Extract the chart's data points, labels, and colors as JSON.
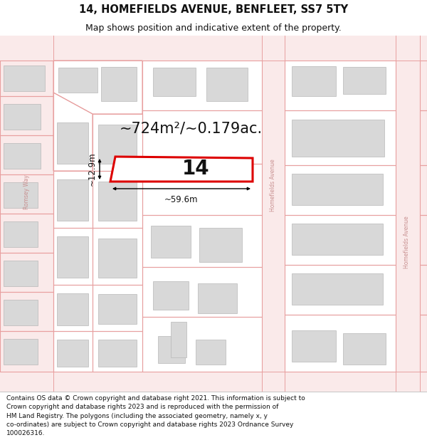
{
  "title": "14, HOMEFIELDS AVENUE, BENFLEET, SS7 5TY",
  "subtitle": "Map shows position and indicative extent of the property.",
  "footer_lines": [
    "Contains OS data © Crown copyright and database right 2021. This information is subject to",
    "Crown copyright and database rights 2023 and is reproduced with the permission of",
    "HM Land Registry. The polygons (including the associated geometry, namely x, y",
    "co-ordinates) are subject to Crown copyright and database rights 2023 Ordnance Survey",
    "100026316."
  ],
  "area_label": "~724m²/~0.179ac.",
  "width_label": "~59.6m",
  "height_label": "~12.9m",
  "plot_number": "14",
  "map_bg": "#ffffff",
  "map_faint_bg": "#fef8f8",
  "building_fill": "#d8d8d8",
  "building_edge": "#b8b8b8",
  "plot_line_color": "#e8a0a0",
  "road_band_color": "#faeaea",
  "highlight_color": "#dd0000",
  "highlight_fill": "#ffffff",
  "street_label_color": "#c89090",
  "text_color": "#111111",
  "title_fontsize": 10.5,
  "subtitle_fontsize": 9,
  "footer_fontsize": 6.5,
  "area_fontsize": 15,
  "dim_fontsize": 8.5,
  "number_fontsize": 20
}
